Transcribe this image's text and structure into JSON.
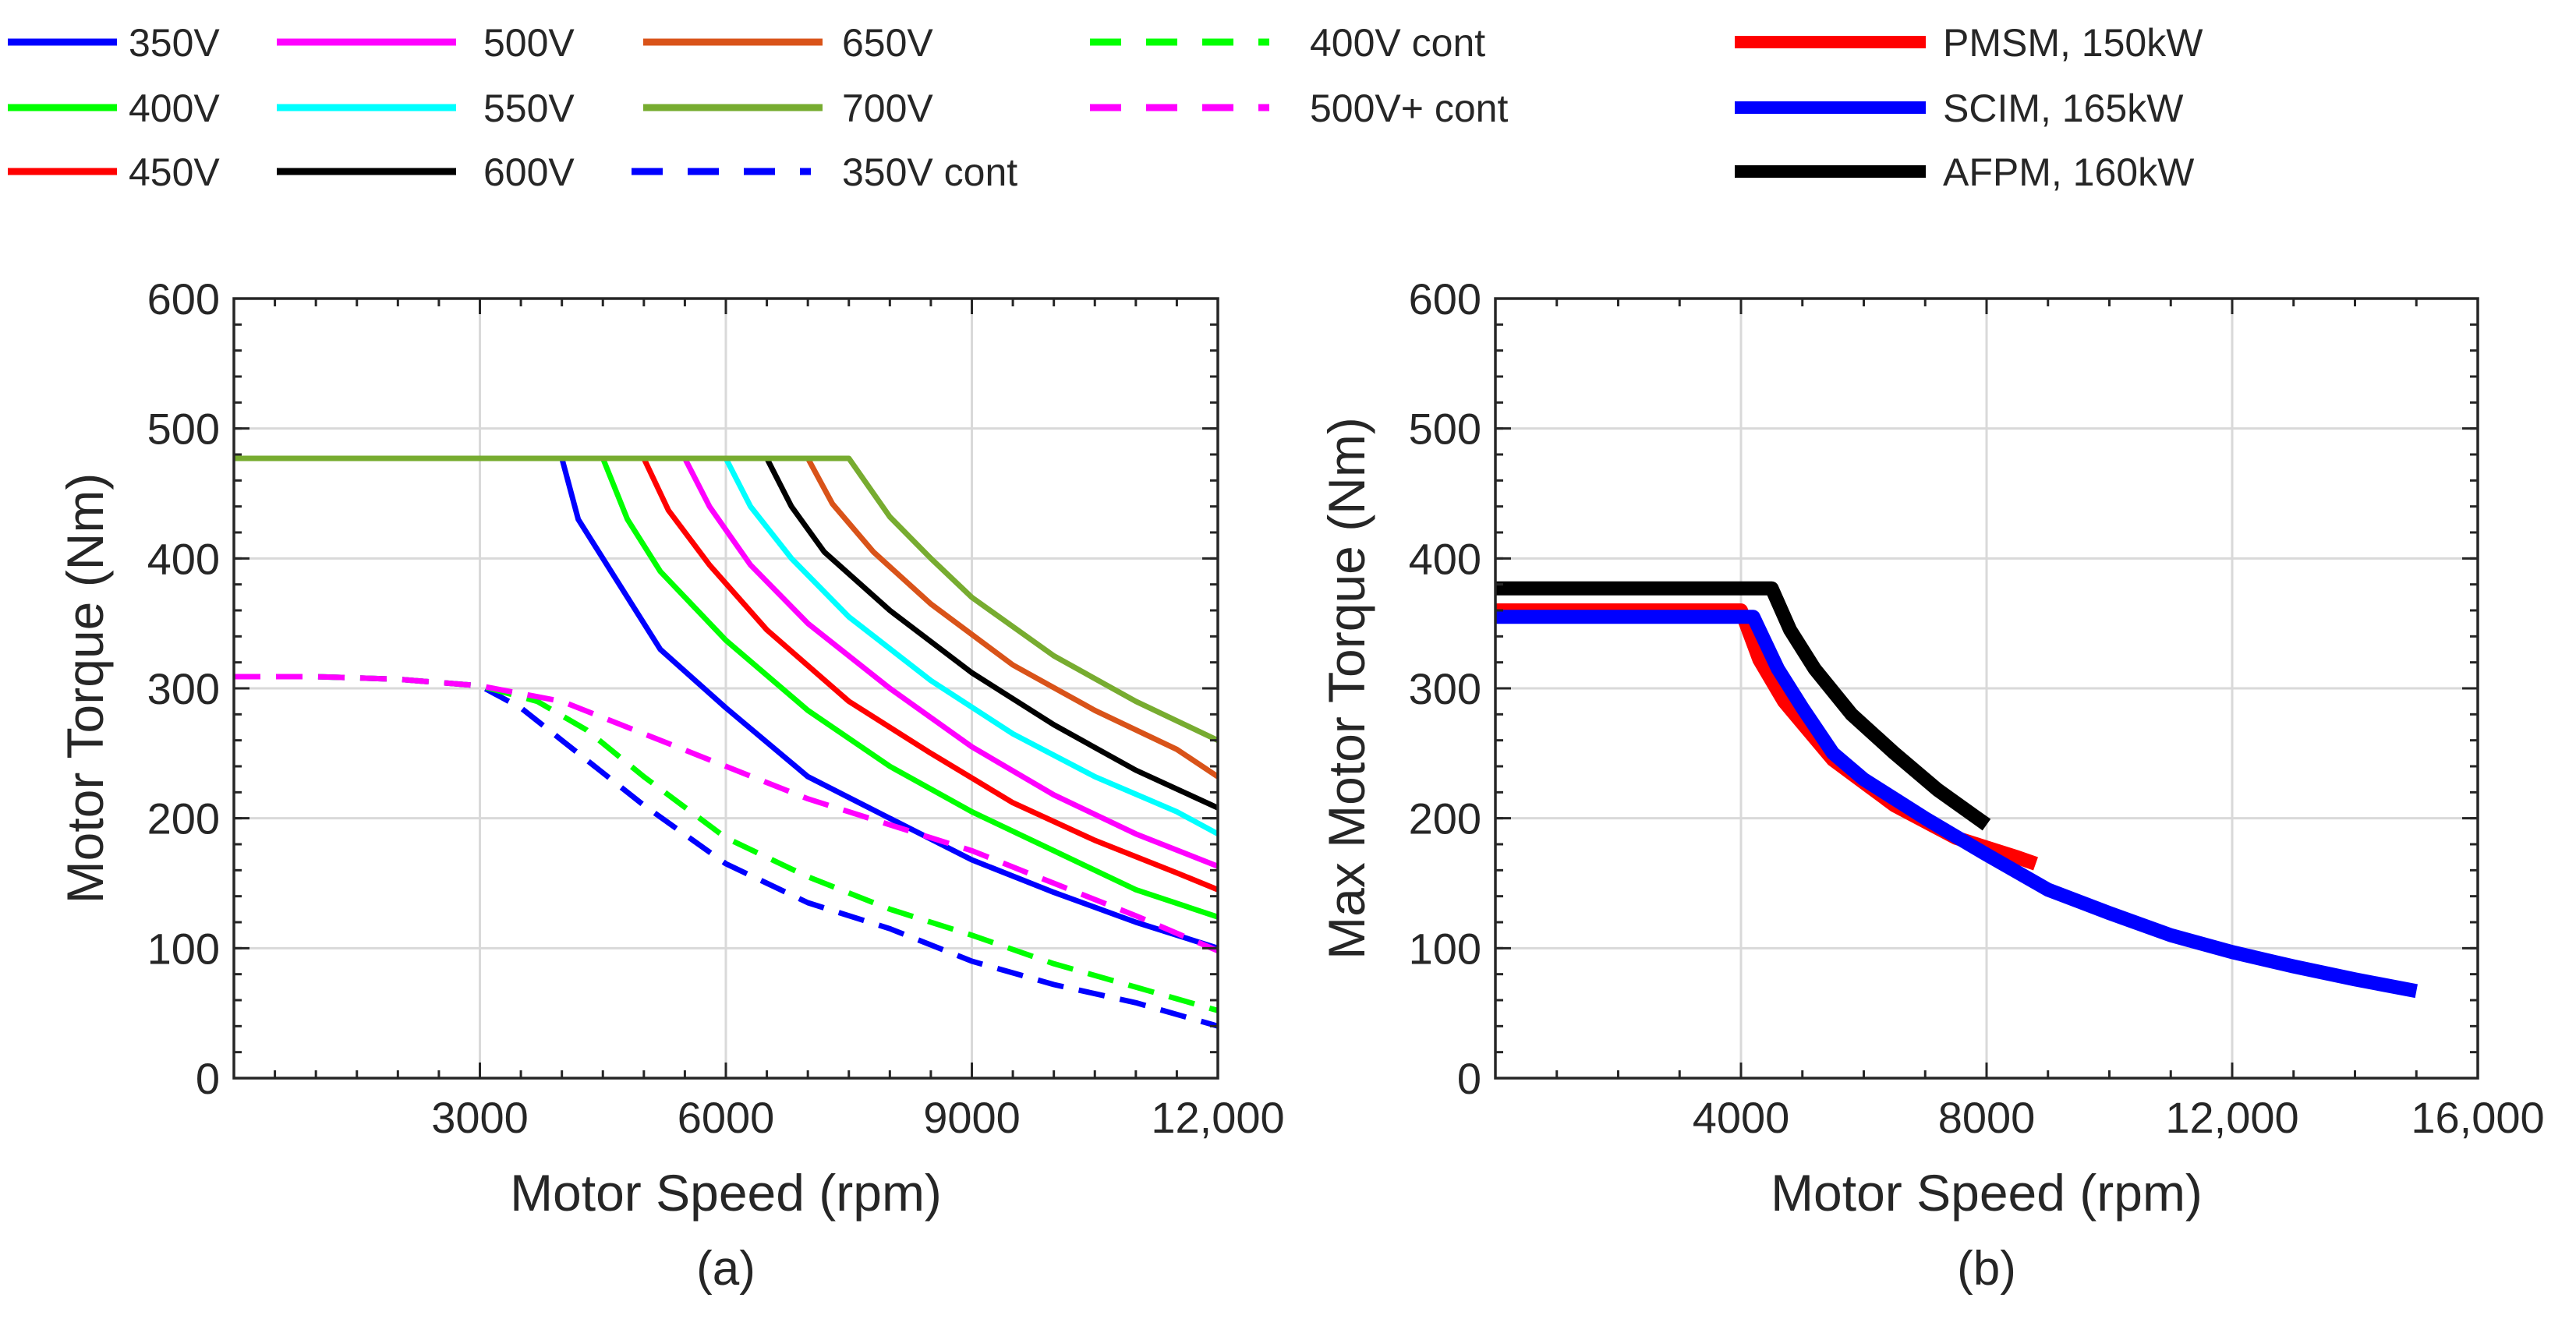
{
  "figure_legend": {
    "voltage_curves": [
      {
        "label": "350V",
        "color": "#0000ff"
      },
      {
        "label": "400V",
        "color": "#00ff00"
      },
      {
        "label": "450V",
        "color": "#ff0000"
      },
      {
        "label": "500V",
        "color": "#ff00ff"
      },
      {
        "label": "550V",
        "color": "#00ffff"
      },
      {
        "label": "600V",
        "color": "#000000"
      },
      {
        "label": "650V",
        "color": "#d95319"
      },
      {
        "label": "700V",
        "color": "#77ac30"
      },
      {
        "label": "350V cont",
        "color": "#0000ff",
        "dashed": true
      },
      {
        "label": "400V cont",
        "color": "#00ff00",
        "dashed": true
      },
      {
        "label": "500V+ cont",
        "color": "#ff00ff",
        "dashed": true
      }
    ],
    "motor_curves": [
      {
        "label": "PMSM, 150kW",
        "color": "#ff0000"
      },
      {
        "label": "SCIM, 165kW",
        "color": "#0000ff"
      },
      {
        "label": "AFPM, 160kW",
        "color": "#000000"
      }
    ]
  },
  "chart_data": [
    {
      "type": "line",
      "subtitle": "(a)",
      "xlabel": "Motor Speed (rpm)",
      "ylabel": "Motor Torque (Nm)",
      "xlim": [
        0,
        12000
      ],
      "ylim": [
        0,
        600
      ],
      "xticks": [
        3000,
        6000,
        9000,
        12000
      ],
      "xtick_labels": [
        "3000",
        "6000",
        "9000",
        "12,000"
      ],
      "yticks": [
        0,
        100,
        200,
        300,
        400,
        500,
        600
      ],
      "ytick_labels": [
        "0",
        "100",
        "200",
        "300",
        "400",
        "500",
        "600"
      ],
      "grid": true,
      "series": [
        {
          "name": "350V",
          "color": "#0000ff",
          "dashed": false,
          "x": [
            0,
            4000,
            4200,
            4600,
            5200,
            6000,
            7000,
            8000,
            9000,
            10000,
            11000,
            12000
          ],
          "y": [
            477,
            477,
            430,
            390,
            330,
            285,
            232,
            200,
            168,
            143,
            120,
            100
          ]
        },
        {
          "name": "400V",
          "color": "#00ff00",
          "dashed": false,
          "x": [
            0,
            4500,
            4800,
            5200,
            6000,
            7000,
            8000,
            9000,
            10000,
            11000,
            12000
          ],
          "y": [
            477,
            477,
            430,
            390,
            337,
            283,
            240,
            205,
            175,
            145,
            124
          ]
        },
        {
          "name": "450V",
          "color": "#ff0000",
          "dashed": false,
          "x": [
            0,
            5000,
            5300,
            5800,
            6500,
            7500,
            8500,
            9500,
            10500,
            11500,
            12000
          ],
          "y": [
            477,
            477,
            437,
            395,
            345,
            290,
            250,
            212,
            183,
            158,
            145
          ]
        },
        {
          "name": "500V",
          "color": "#ff00ff",
          "dashed": false,
          "x": [
            0,
            5500,
            5800,
            6300,
            7000,
            8000,
            9000,
            10000,
            11000,
            12000
          ],
          "y": [
            477,
            477,
            440,
            395,
            350,
            300,
            255,
            218,
            188,
            163
          ]
        },
        {
          "name": "550V",
          "color": "#00ffff",
          "dashed": false,
          "x": [
            0,
            6000,
            6300,
            6800,
            7500,
            8500,
            9500,
            10500,
            11500,
            12000
          ],
          "y": [
            477,
            477,
            440,
            400,
            355,
            306,
            265,
            232,
            205,
            188
          ]
        },
        {
          "name": "600V",
          "color": "#000000",
          "dashed": false,
          "x": [
            0,
            6500,
            6800,
            7200,
            8000,
            9000,
            10000,
            11000,
            12000
          ],
          "y": [
            477,
            477,
            440,
            405,
            360,
            312,
            272,
            237,
            208
          ]
        },
        {
          "name": "650V",
          "color": "#d95319",
          "dashed": false,
          "x": [
            0,
            7000,
            7300,
            7800,
            8500,
            9500,
            10500,
            11500,
            12000
          ],
          "y": [
            477,
            477,
            442,
            405,
            365,
            318,
            283,
            253,
            232
          ]
        },
        {
          "name": "700V",
          "color": "#77ac30",
          "dashed": false,
          "x": [
            0,
            7500,
            8000,
            8500,
            9000,
            10000,
            11000,
            12000
          ],
          "y": [
            477,
            477,
            432,
            400,
            370,
            325,
            290,
            260
          ]
        },
        {
          "name": "350V cont",
          "color": "#0000ff",
          "dashed": true,
          "x": [
            0,
            1000,
            2000,
            3000,
            3500,
            4000,
            5000,
            6000,
            7000,
            8000,
            9000,
            10000,
            11000,
            12000
          ],
          "y": [
            309,
            309,
            307,
            302,
            285,
            260,
            210,
            165,
            135,
            115,
            90,
            72,
            58,
            40
          ]
        },
        {
          "name": "400V cont",
          "color": "#00ff00",
          "dashed": true,
          "x": [
            0,
            1000,
            2000,
            3000,
            3700,
            4300,
            5000,
            6000,
            7000,
            8000,
            9000,
            10000,
            11000,
            12000
          ],
          "y": [
            309,
            309,
            307,
            302,
            290,
            268,
            232,
            185,
            155,
            130,
            110,
            88,
            70,
            52
          ]
        },
        {
          "name": "500V+ cont",
          "color": "#ff00ff",
          "dashed": true,
          "x": [
            0,
            1000,
            2000,
            3000,
            4000,
            5000,
            6000,
            7000,
            8000,
            9000,
            10000,
            11000,
            12000
          ],
          "y": [
            309,
            309,
            307,
            302,
            290,
            265,
            240,
            215,
            195,
            175,
            150,
            125,
            98
          ]
        }
      ]
    },
    {
      "type": "line",
      "subtitle": "(b)",
      "xlabel": "Motor Speed (rpm)",
      "ylabel": "Max Motor Torque (Nm)",
      "xlim": [
        0,
        16000
      ],
      "ylim": [
        0,
        600
      ],
      "xticks": [
        4000,
        8000,
        12000,
        16000
      ],
      "xtick_labels": [
        "4000",
        "8000",
        "12,000",
        "16,000"
      ],
      "yticks": [
        0,
        100,
        200,
        300,
        400,
        500,
        600
      ],
      "ytick_labels": [
        "0",
        "100",
        "200",
        "300",
        "400",
        "500",
        "600"
      ],
      "grid": true,
      "series": [
        {
          "name": "PMSM, 150kW",
          "color": "#ff0000",
          "dashed": false,
          "x": [
            0,
            4000,
            4300,
            4700,
            5500,
            6500,
            7500,
            8500,
            8800
          ],
          "y": [
            360,
            360,
            322,
            290,
            245,
            210,
            185,
            170,
            165
          ]
        },
        {
          "name": "SCIM, 165kW",
          "color": "#0000ff",
          "dashed": false,
          "x": [
            0,
            4200,
            4600,
            5000,
            5500,
            6000,
            7000,
            8000,
            9000,
            10000,
            11000,
            12000,
            13000,
            14000,
            15000
          ],
          "y": [
            355,
            355,
            315,
            285,
            250,
            230,
            200,
            172,
            145,
            127,
            110,
            97,
            86,
            76,
            67
          ]
        },
        {
          "name": "AFPM, 160kW",
          "color": "#000000",
          "dashed": false,
          "x": [
            0,
            4500,
            4800,
            5200,
            5800,
            6500,
            7200,
            8000
          ],
          "y": [
            377,
            377,
            345,
            315,
            280,
            250,
            222,
            195
          ]
        }
      ]
    }
  ]
}
